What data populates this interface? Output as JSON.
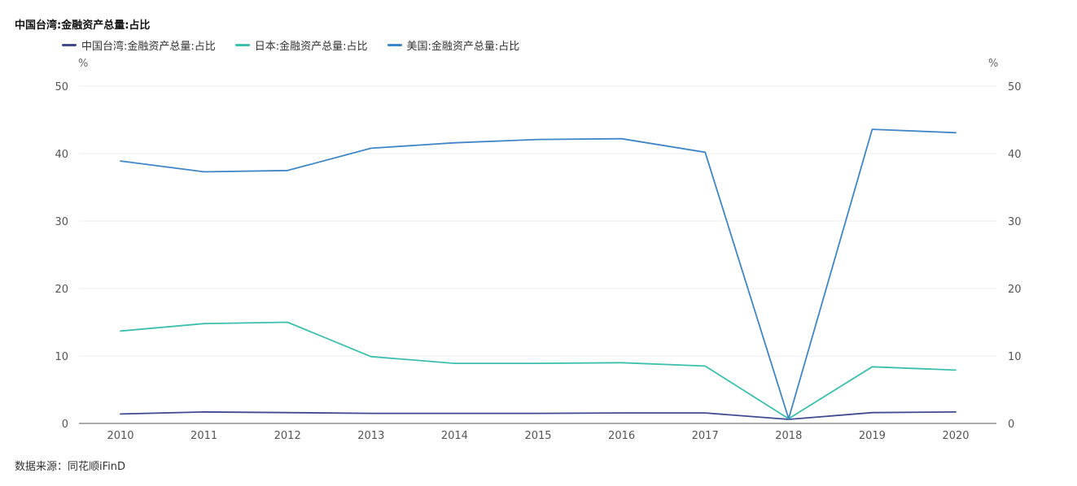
{
  "chart_data": {
    "type": "line",
    "title": "中国台湾:金融资产总量:占比",
    "categories": [
      "2010",
      "2011",
      "2012",
      "2013",
      "2014",
      "2015",
      "2016",
      "2017",
      "2018",
      "2019",
      "2020"
    ],
    "series": [
      {
        "name": "中国台湾:金融资产总量:占比",
        "color": "#3f4a8f",
        "values": [
          1.4,
          1.7,
          1.6,
          1.5,
          1.5,
          1.5,
          1.55,
          1.55,
          0.6,
          1.6,
          1.7
        ]
      },
      {
        "name": "日本:金融资产总量:占比",
        "color": "#3dbfae",
        "values": [
          13.7,
          14.8,
          15.0,
          9.9,
          8.9,
          8.9,
          9.0,
          8.5,
          0.7,
          8.4,
          7.9
        ]
      },
      {
        "name": "美国:金融资产总量:占比",
        "color": "#3f86c8",
        "values": [
          38.9,
          37.3,
          37.5,
          40.8,
          41.6,
          42.1,
          42.2,
          40.2,
          0.7,
          43.6,
          43.1
        ]
      }
    ],
    "ylim": [
      0,
      50
    ],
    "yticks": [
      0,
      10,
      20,
      30,
      40,
      50
    ],
    "y_unit_left": "%",
    "y_unit_right": "%",
    "grid": true,
    "legend_position": "top-left"
  },
  "source": "数据来源：同花顺iFinD"
}
